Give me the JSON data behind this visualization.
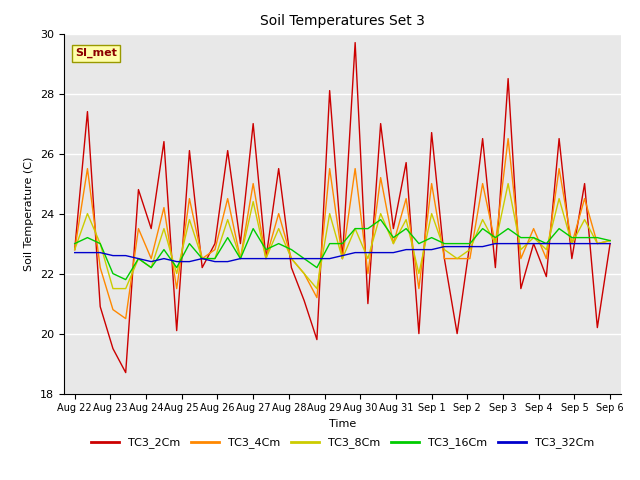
{
  "title": "Soil Temperatures Set 3",
  "xlabel": "Time",
  "ylabel": "Soil Temperature (C)",
  "ylim": [
    18,
    30
  ],
  "xtick_labels": [
    "Aug 22",
    "Aug 23",
    "Aug 24",
    "Aug 25",
    "Aug 26",
    "Aug 27",
    "Aug 28",
    "Aug 29",
    "Aug 30",
    "Aug 31",
    "Sep 1",
    "Sep 2",
    "Sep 3",
    "Sep 4",
    "Sep 5",
    "Sep 6"
  ],
  "annotation": "SI_met",
  "fig_bg": "#ffffff",
  "plot_bg": "#e8e8e8",
  "grid_color": "#ffffff",
  "series": {
    "TC3_2Cm": {
      "color": "#cc0000",
      "data": [
        22.8,
        27.4,
        20.9,
        19.5,
        18.7,
        24.8,
        23.5,
        26.4,
        20.1,
        26.1,
        22.2,
        23.0,
        26.1,
        23.0,
        27.0,
        22.5,
        25.5,
        22.2,
        21.1,
        19.8,
        28.1,
        22.5,
        29.7,
        21.0,
        27.0,
        23.5,
        25.7,
        20.0,
        26.7,
        22.5,
        20.0,
        23.0,
        26.5,
        22.2,
        28.5,
        21.5,
        23.0,
        21.9,
        26.5,
        22.5,
        25.0,
        20.2,
        23.0
      ]
    },
    "TC3_4Cm": {
      "color": "#ff8800",
      "data": [
        22.8,
        25.5,
        22.2,
        20.8,
        20.5,
        23.5,
        22.5,
        24.2,
        21.5,
        24.5,
        22.5,
        22.8,
        24.5,
        22.5,
        25.0,
        22.5,
        24.0,
        22.5,
        22.0,
        21.2,
        25.5,
        22.5,
        25.5,
        22.0,
        25.2,
        23.0,
        24.5,
        21.5,
        25.0,
        22.5,
        22.5,
        22.5,
        25.0,
        23.0,
        26.5,
        22.5,
        23.5,
        22.5,
        25.5,
        23.0,
        24.5,
        23.0,
        23.1
      ]
    },
    "TC3_8Cm": {
      "color": "#cccc00",
      "data": [
        22.8,
        24.0,
        23.0,
        21.5,
        21.5,
        22.5,
        22.2,
        23.5,
        22.0,
        23.8,
        22.5,
        22.5,
        23.8,
        22.5,
        24.4,
        22.5,
        23.5,
        22.5,
        22.0,
        21.5,
        24.0,
        22.5,
        23.5,
        22.5,
        24.0,
        23.0,
        23.8,
        22.0,
        24.0,
        22.8,
        22.5,
        22.8,
        23.8,
        23.0,
        25.0,
        22.8,
        23.2,
        22.8,
        24.5,
        23.0,
        23.8,
        23.0,
        23.1
      ]
    },
    "TC3_16Cm": {
      "color": "#00cc00",
      "data": [
        23.0,
        23.2,
        23.0,
        22.0,
        21.8,
        22.5,
        22.2,
        22.8,
        22.2,
        23.0,
        22.5,
        22.5,
        23.2,
        22.5,
        23.5,
        22.8,
        23.0,
        22.8,
        22.5,
        22.2,
        23.0,
        23.0,
        23.5,
        23.5,
        23.8,
        23.2,
        23.5,
        23.0,
        23.2,
        23.0,
        23.0,
        23.0,
        23.5,
        23.2,
        23.5,
        23.2,
        23.2,
        23.0,
        23.5,
        23.2,
        23.2,
        23.2,
        23.1
      ]
    },
    "TC3_32Cm": {
      "color": "#0000cc",
      "data": [
        22.7,
        22.7,
        22.7,
        22.6,
        22.6,
        22.5,
        22.4,
        22.5,
        22.4,
        22.4,
        22.5,
        22.4,
        22.4,
        22.5,
        22.5,
        22.5,
        22.5,
        22.5,
        22.5,
        22.5,
        22.5,
        22.6,
        22.7,
        22.7,
        22.7,
        22.7,
        22.8,
        22.8,
        22.8,
        22.9,
        22.9,
        22.9,
        22.9,
        23.0,
        23.0,
        23.0,
        23.0,
        23.0,
        23.0,
        23.0,
        23.0,
        23.0,
        23.0
      ]
    }
  },
  "legend_order": [
    "TC3_2Cm",
    "TC3_4Cm",
    "TC3_8Cm",
    "TC3_16Cm",
    "TC3_32Cm"
  ]
}
